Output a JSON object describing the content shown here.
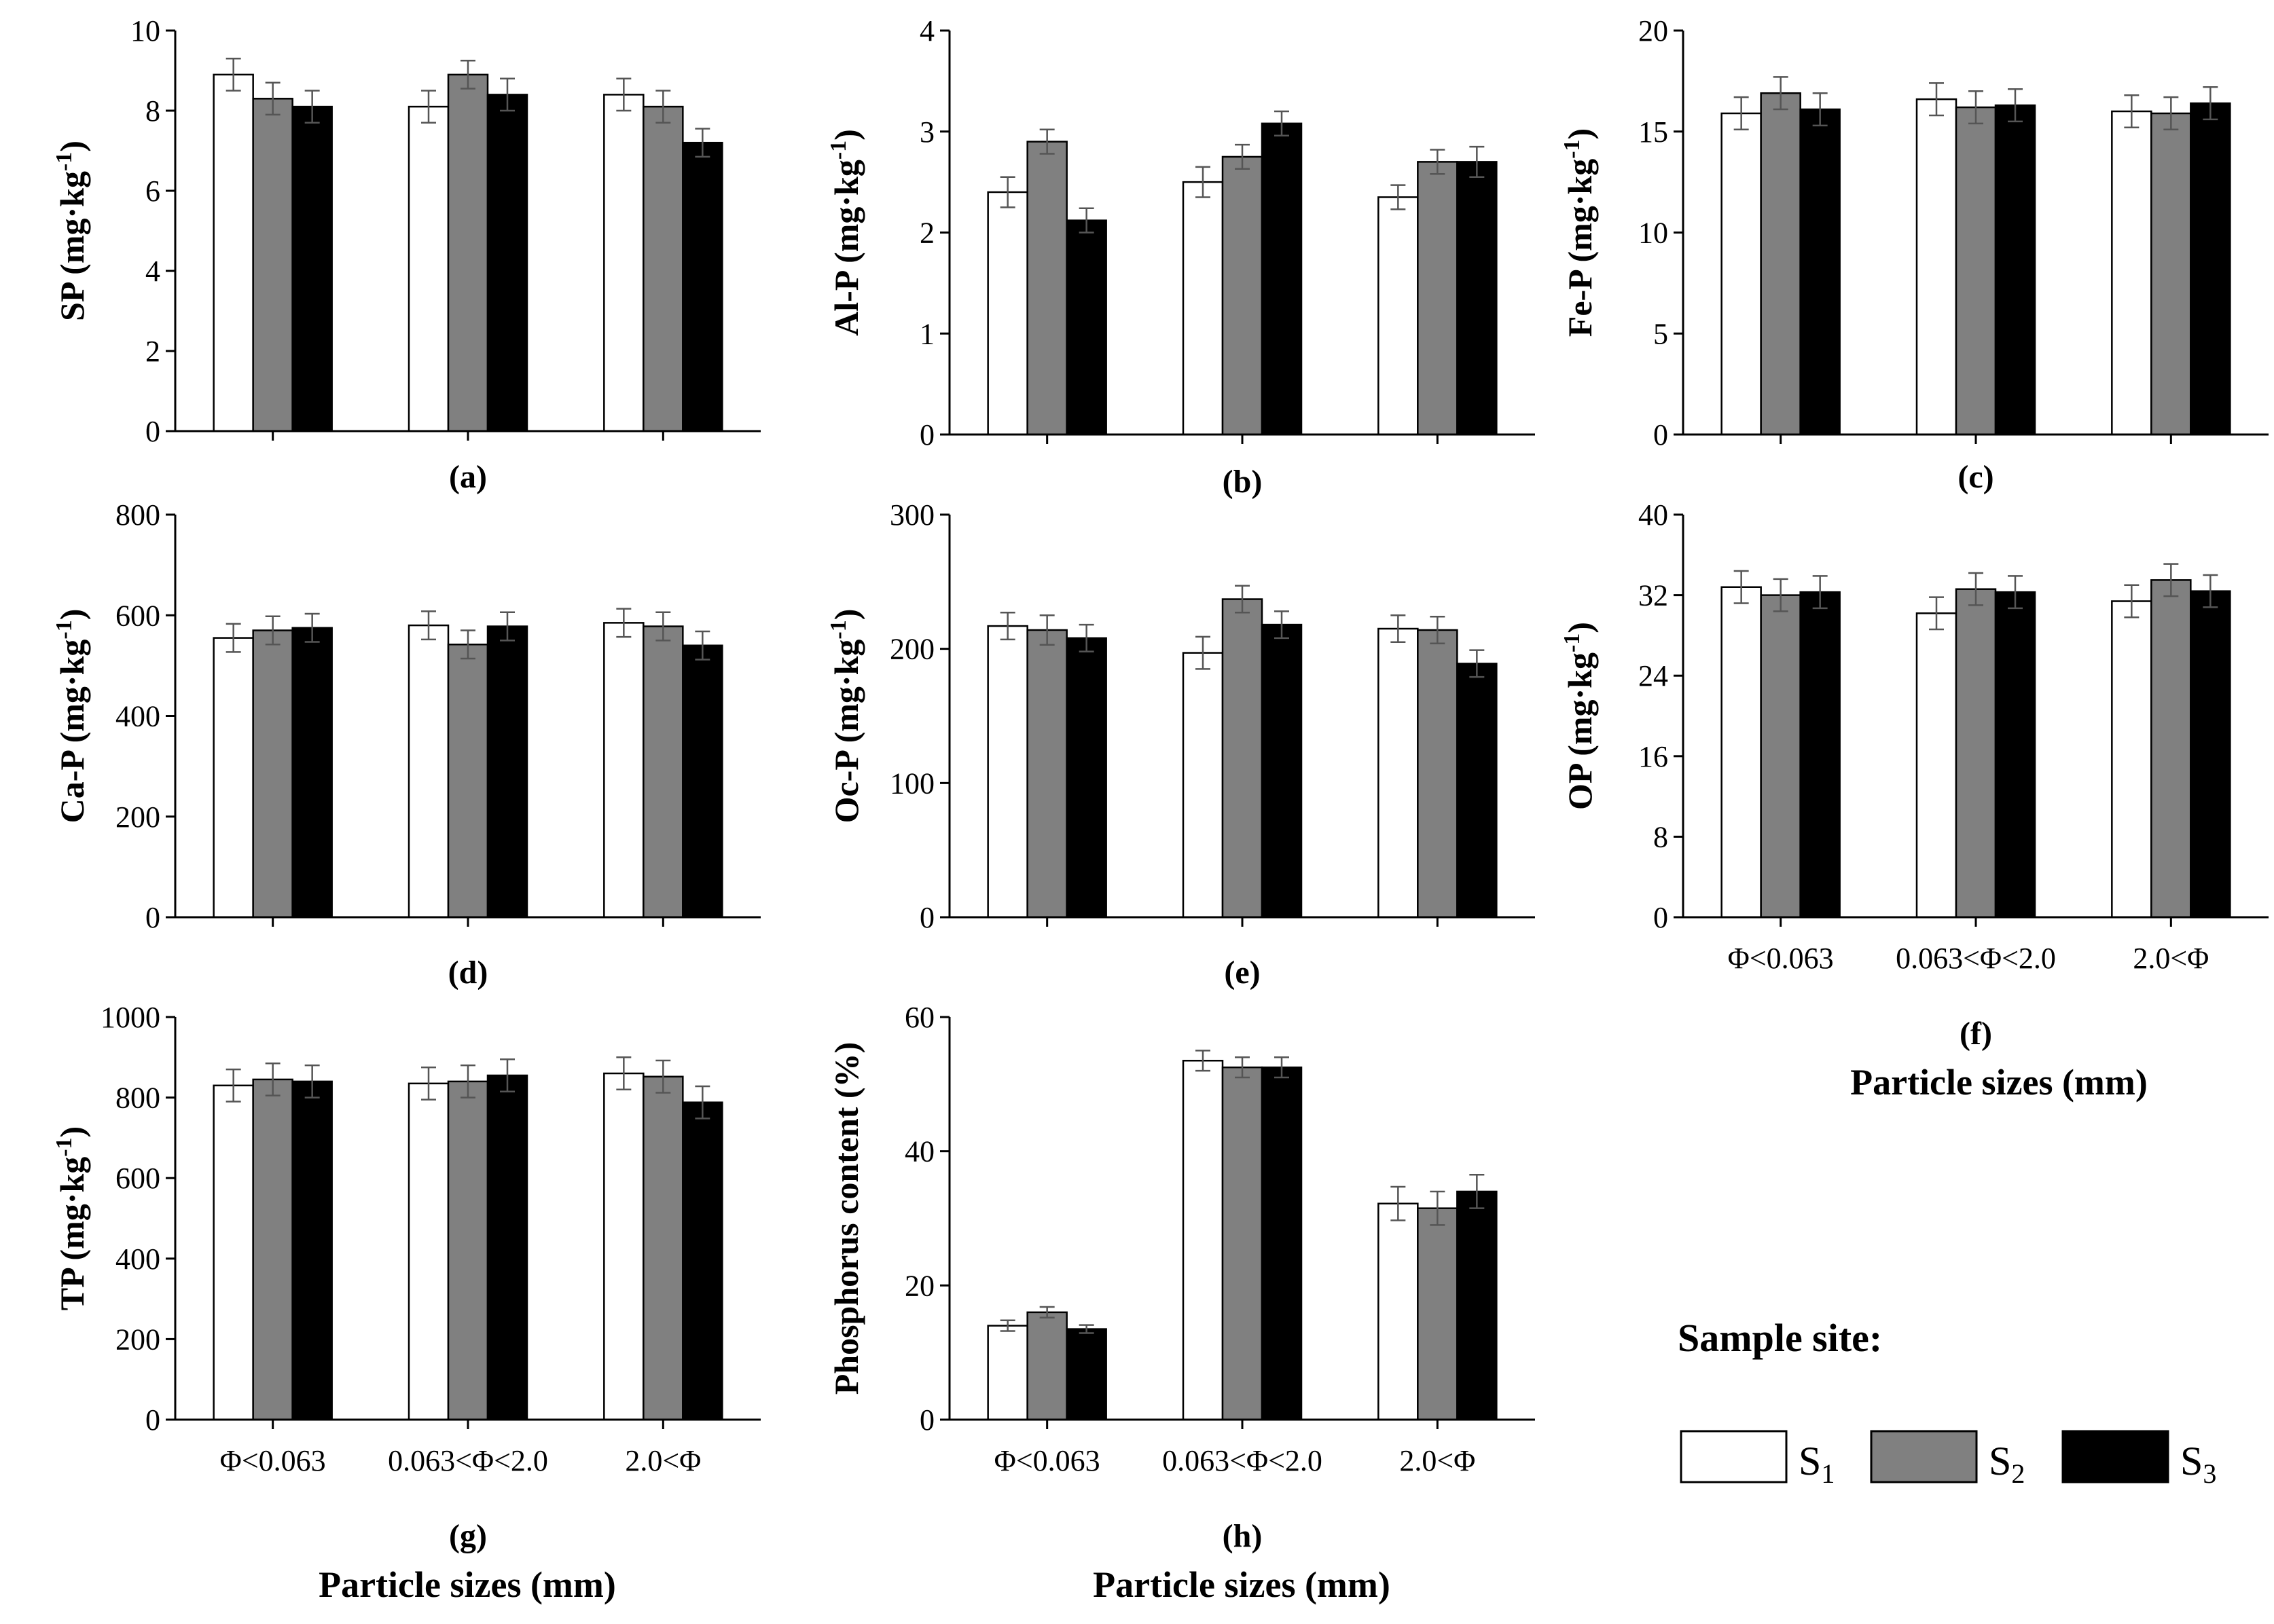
{
  "colors": {
    "S1": "#ffffff",
    "S2": "#808080",
    "S3": "#000000"
  },
  "legend": {
    "title": "Sample site:",
    "items": [
      {
        "label": "S",
        "sub": "1"
      },
      {
        "label": "S",
        "sub": "2"
      },
      {
        "label": "S",
        "sub": "3"
      }
    ]
  },
  "categories": [
    "Φ<0.063",
    "0.063<Φ<2.0",
    "2.0<Φ"
  ],
  "x_axis_title": "Particle sizes (mm)",
  "chart_data": [
    {
      "type": "bar",
      "panel": "(a)",
      "ylabel_main": "SP (mg·kg",
      "ylabel_sup": "-1",
      "ylabel_end": ")",
      "ylim": [
        0,
        10
      ],
      "yticks": [
        0,
        2,
        4,
        6,
        8,
        10
      ],
      "series": [
        {
          "name": "S1",
          "values": [
            8.9,
            8.1,
            8.4
          ],
          "errors": [
            0.4,
            0.4,
            0.4
          ]
        },
        {
          "name": "S2",
          "values": [
            8.3,
            8.9,
            8.1
          ],
          "errors": [
            0.4,
            0.35,
            0.4
          ]
        },
        {
          "name": "S3",
          "values": [
            8.1,
            8.4,
            7.2
          ],
          "errors": [
            0.4,
            0.4,
            0.35
          ]
        }
      ]
    },
    {
      "type": "bar",
      "panel": "(b)",
      "ylabel_main": "Al-P (mg·kg",
      "ylabel_sup": "-1",
      "ylabel_end": ")",
      "ylim": [
        0,
        4
      ],
      "yticks": [
        0,
        1,
        2,
        3,
        4
      ],
      "series": [
        {
          "name": "S1",
          "values": [
            2.4,
            2.5,
            2.35
          ],
          "errors": [
            0.15,
            0.15,
            0.12
          ]
        },
        {
          "name": "S2",
          "values": [
            2.9,
            2.75,
            2.7
          ],
          "errors": [
            0.12,
            0.12,
            0.12
          ]
        },
        {
          "name": "S3",
          "values": [
            2.12,
            3.08,
            2.7
          ],
          "errors": [
            0.12,
            0.12,
            0.15
          ]
        }
      ]
    },
    {
      "type": "bar",
      "panel": "(c)",
      "ylabel_main": "Fe-P (mg·kg",
      "ylabel_sup": "-1",
      "ylabel_end": ")",
      "ylim": [
        0,
        20
      ],
      "yticks": [
        0,
        5,
        10,
        15,
        20
      ],
      "series": [
        {
          "name": "S1",
          "values": [
            15.9,
            16.6,
            16.0
          ],
          "errors": [
            0.8,
            0.8,
            0.8
          ]
        },
        {
          "name": "S2",
          "values": [
            16.9,
            16.2,
            15.9
          ],
          "errors": [
            0.8,
            0.8,
            0.8
          ]
        },
        {
          "name": "S3",
          "values": [
            16.1,
            16.3,
            16.4
          ],
          "errors": [
            0.8,
            0.8,
            0.8
          ]
        }
      ]
    },
    {
      "type": "bar",
      "panel": "(d)",
      "ylabel_main": "Ca-P (mg·kg",
      "ylabel_sup": "-1",
      "ylabel_end": ")",
      "ylim": [
        0,
        800
      ],
      "yticks": [
        0,
        200,
        400,
        600,
        800
      ],
      "series": [
        {
          "name": "S1",
          "values": [
            555,
            580,
            585
          ],
          "errors": [
            28,
            28,
            28
          ]
        },
        {
          "name": "S2",
          "values": [
            570,
            542,
            578
          ],
          "errors": [
            28,
            28,
            28
          ]
        },
        {
          "name": "S3",
          "values": [
            575,
            578,
            540
          ],
          "errors": [
            28,
            28,
            28
          ]
        }
      ]
    },
    {
      "type": "bar",
      "panel": "(e)",
      "ylabel_main": "Oc-P (mg·kg",
      "ylabel_sup": "-1",
      "ylabel_end": ")",
      "ylim": [
        0,
        300
      ],
      "yticks": [
        0,
        100,
        200,
        300
      ],
      "series": [
        {
          "name": "S1",
          "values": [
            217,
            197,
            215
          ],
          "errors": [
            10,
            12,
            10
          ]
        },
        {
          "name": "S2",
          "values": [
            214,
            237,
            214
          ],
          "errors": [
            11,
            10,
            10
          ]
        },
        {
          "name": "S3",
          "values": [
            208,
            218,
            189
          ],
          "errors": [
            10,
            10,
            10
          ]
        }
      ]
    },
    {
      "type": "bar",
      "panel": "(f)",
      "ylabel_main": "OP (mg·kg",
      "ylabel_sup": "-1",
      "ylabel_end": ")",
      "ylim": [
        0,
        40
      ],
      "yticks": [
        0,
        8,
        16,
        24,
        32,
        40
      ],
      "series": [
        {
          "name": "S1",
          "values": [
            32.8,
            30.2,
            31.4
          ],
          "errors": [
            1.6,
            1.6,
            1.6
          ]
        },
        {
          "name": "S2",
          "values": [
            32.0,
            32.6,
            33.5
          ],
          "errors": [
            1.6,
            1.6,
            1.6
          ]
        },
        {
          "name": "S3",
          "values": [
            32.3,
            32.3,
            32.4
          ],
          "errors": [
            1.6,
            1.6,
            1.6
          ]
        }
      ]
    },
    {
      "type": "bar",
      "panel": "(g)",
      "ylabel_main": "TP (mg·kg",
      "ylabel_sup": "-1",
      "ylabel_end": ")",
      "ylim": [
        0,
        1000
      ],
      "yticks": [
        0,
        200,
        400,
        600,
        800,
        1000
      ],
      "series": [
        {
          "name": "S1",
          "values": [
            830,
            835,
            860
          ],
          "errors": [
            40,
            40,
            40
          ]
        },
        {
          "name": "S2",
          "values": [
            845,
            840,
            852
          ],
          "errors": [
            40,
            40,
            40
          ]
        },
        {
          "name": "S3",
          "values": [
            840,
            855,
            788
          ],
          "errors": [
            40,
            40,
            40
          ]
        }
      ]
    },
    {
      "type": "bar",
      "panel": "(h)",
      "ylabel_main": "Phosphorus content (%)",
      "ylabel_sup": "",
      "ylabel_end": "",
      "ylim": [
        0,
        60
      ],
      "yticks": [
        0,
        20,
        40,
        60
      ],
      "series": [
        {
          "name": "S1",
          "values": [
            14.0,
            53.5,
            32.2
          ],
          "errors": [
            0.8,
            1.5,
            2.5
          ]
        },
        {
          "name": "S2",
          "values": [
            16.0,
            52.5,
            31.5
          ],
          "errors": [
            0.8,
            1.5,
            2.5
          ]
        },
        {
          "name": "S3",
          "values": [
            13.5,
            52.5,
            34.0
          ],
          "errors": [
            0.6,
            1.5,
            2.5
          ]
        }
      ]
    }
  ]
}
